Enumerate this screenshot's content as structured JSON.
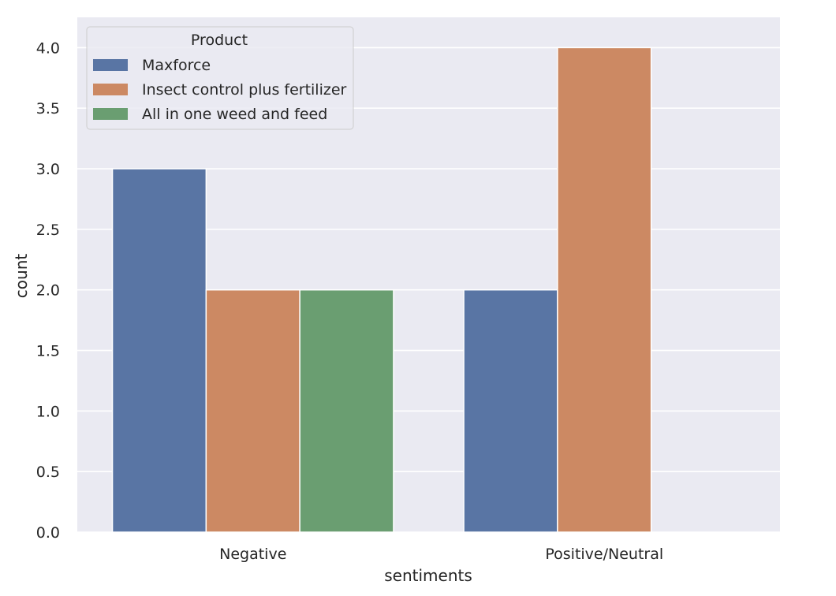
{
  "chart_data": {
    "type": "bar",
    "title": "",
    "xlabel": "sentiments",
    "ylabel": "count",
    "categories": [
      "Negative",
      "Positive/Neutral"
    ],
    "series": [
      {
        "name": "Maxforce",
        "values": [
          3,
          2
        ],
        "color": "#5975a4"
      },
      {
        "name": "Insect control plus fertilizer",
        "values": [
          2,
          4
        ],
        "color": "#cc8963"
      },
      {
        "name": "All in one weed and feed",
        "values": [
          2,
          0
        ],
        "color": "#6a9e71"
      }
    ],
    "ylim": [
      0,
      4.25
    ],
    "yticks": [
      "0.0",
      "0.5",
      "1.0",
      "1.5",
      "2.0",
      "2.5",
      "3.0",
      "3.5",
      "4.0"
    ],
    "grid": true,
    "legend": {
      "title": "Product",
      "position": "top-left"
    },
    "style": {
      "background": "#eaeaf2",
      "grid_color": "#ffffff"
    }
  }
}
